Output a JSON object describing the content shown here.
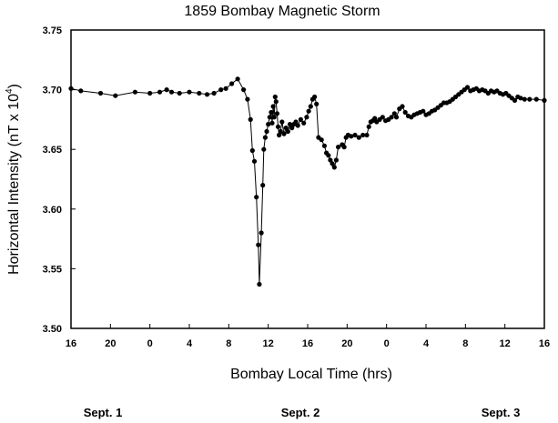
{
  "chart_data": {
    "type": "scatter",
    "title": "1859 Bombay Magnetic Storm",
    "xlabel": "Bombay Local Time (hrs)",
    "ylabel": {
      "main": "Horizontal Intensity (nT x 10",
      "exponent": "4",
      "close": ")"
    },
    "ylim": [
      3.5,
      3.75
    ],
    "xlim": [
      0,
      48
    ],
    "yticks": [
      "3.50",
      "3.55",
      "3.60",
      "3.65",
      "3.70",
      "3.75"
    ],
    "xtick_labels": [
      "16",
      "20",
      "0",
      "4",
      "8",
      "12",
      "16",
      "20",
      "0",
      "4",
      "8",
      "12",
      "16"
    ],
    "day_labels": [
      "Sept. 1",
      "Sept. 2",
      "Sept. 3"
    ],
    "grid": false,
    "marker_color": "#000000",
    "points": [
      [
        0,
        3.701
      ],
      [
        1,
        3.699
      ],
      [
        3,
        3.697
      ],
      [
        4.5,
        3.695
      ],
      [
        6.5,
        3.698
      ],
      [
        8,
        3.697
      ],
      [
        9,
        3.698
      ],
      [
        9.7,
        3.7
      ],
      [
        10.2,
        3.698
      ],
      [
        11,
        3.697
      ],
      [
        12,
        3.698
      ],
      [
        13,
        3.697
      ],
      [
        13.8,
        3.696
      ],
      [
        14.5,
        3.697
      ],
      [
        15.2,
        3.7
      ],
      [
        15.7,
        3.701
      ],
      [
        16.3,
        3.705
      ],
      [
        16.9,
        3.709
      ],
      [
        17.5,
        3.7
      ],
      [
        17.9,
        3.692
      ],
      [
        18.2,
        3.675
      ],
      [
        18.4,
        3.649
      ],
      [
        18.6,
        3.64
      ],
      [
        18.8,
        3.61
      ],
      [
        19.0,
        3.57
      ],
      [
        19.1,
        3.537
      ],
      [
        19.3,
        3.58
      ],
      [
        19.45,
        3.62
      ],
      [
        19.55,
        3.65
      ],
      [
        19.7,
        3.66
      ],
      [
        19.85,
        3.665
      ],
      [
        20.0,
        3.671
      ],
      [
        20.15,
        3.677
      ],
      [
        20.3,
        3.681
      ],
      [
        20.4,
        3.672
      ],
      [
        20.5,
        3.686
      ],
      [
        20.6,
        3.677
      ],
      [
        20.7,
        3.694
      ],
      [
        20.8,
        3.69
      ],
      [
        20.9,
        3.68
      ],
      [
        21.0,
        3.669
      ],
      [
        21.1,
        3.662
      ],
      [
        21.25,
        3.665
      ],
      [
        21.4,
        3.673
      ],
      [
        21.6,
        3.663
      ],
      [
        21.8,
        3.668
      ],
      [
        22.0,
        3.665
      ],
      [
        22.2,
        3.671
      ],
      [
        22.4,
        3.668
      ],
      [
        22.6,
        3.671
      ],
      [
        22.8,
        3.673
      ],
      [
        23.0,
        3.67
      ],
      [
        23.3,
        3.675
      ],
      [
        23.6,
        3.672
      ],
      [
        23.9,
        3.677
      ],
      [
        24.1,
        3.682
      ],
      [
        24.3,
        3.686
      ],
      [
        24.5,
        3.692
      ],
      [
        24.7,
        3.694
      ],
      [
        24.9,
        3.688
      ],
      [
        25.1,
        3.66
      ],
      [
        25.4,
        3.658
      ],
      [
        25.7,
        3.653
      ],
      [
        25.9,
        3.647
      ],
      [
        26.1,
        3.645
      ],
      [
        26.3,
        3.641
      ],
      [
        26.5,
        3.638
      ],
      [
        26.7,
        3.635
      ],
      [
        26.9,
        3.641
      ],
      [
        27.1,
        3.652
      ],
      [
        27.5,
        3.654
      ],
      [
        27.7,
        3.652
      ],
      [
        27.9,
        3.66
      ],
      [
        28.1,
        3.662
      ],
      [
        28.4,
        3.661
      ],
      [
        28.8,
        3.662
      ],
      [
        29.2,
        3.66
      ],
      [
        29.6,
        3.662
      ],
      [
        30.0,
        3.662
      ],
      [
        30.2,
        3.669
      ],
      [
        30.4,
        3.673
      ],
      [
        30.6,
        3.674
      ],
      [
        30.8,
        3.676
      ],
      [
        31.0,
        3.673
      ],
      [
        31.3,
        3.675
      ],
      [
        31.6,
        3.677
      ],
      [
        31.9,
        3.674
      ],
      [
        32.2,
        3.675
      ],
      [
        32.5,
        3.677
      ],
      [
        32.8,
        3.68
      ],
      [
        33.0,
        3.677
      ],
      [
        33.3,
        3.684
      ],
      [
        33.6,
        3.686
      ],
      [
        33.9,
        3.681
      ],
      [
        34.2,
        3.678
      ],
      [
        34.5,
        3.677
      ],
      [
        34.8,
        3.679
      ],
      [
        35.1,
        3.68
      ],
      [
        35.4,
        3.681
      ],
      [
        35.7,
        3.682
      ],
      [
        36.0,
        3.679
      ],
      [
        36.3,
        3.68
      ],
      [
        36.6,
        3.682
      ],
      [
        36.9,
        3.683
      ],
      [
        37.2,
        3.685
      ],
      [
        37.5,
        3.687
      ],
      [
        37.8,
        3.689
      ],
      [
        38.1,
        3.689
      ],
      [
        38.4,
        3.69
      ],
      [
        38.7,
        3.692
      ],
      [
        39.0,
        3.694
      ],
      [
        39.3,
        3.696
      ],
      [
        39.6,
        3.698
      ],
      [
        39.9,
        3.7
      ],
      [
        40.2,
        3.702
      ],
      [
        40.5,
        3.699
      ],
      [
        40.8,
        3.7
      ],
      [
        41.1,
        3.701
      ],
      [
        41.4,
        3.699
      ],
      [
        41.7,
        3.7
      ],
      [
        42.0,
        3.699
      ],
      [
        42.3,
        3.697
      ],
      [
        42.6,
        3.699
      ],
      [
        42.9,
        3.698
      ],
      [
        43.2,
        3.699
      ],
      [
        43.5,
        3.697
      ],
      [
        43.8,
        3.696
      ],
      [
        44.1,
        3.697
      ],
      [
        44.4,
        3.695
      ],
      [
        44.7,
        3.693
      ],
      [
        45.0,
        3.691
      ],
      [
        45.3,
        3.694
      ],
      [
        45.6,
        3.693
      ],
      [
        46.0,
        3.692
      ],
      [
        46.5,
        3.692
      ],
      [
        47.2,
        3.692
      ],
      [
        48.0,
        3.691
      ]
    ]
  }
}
